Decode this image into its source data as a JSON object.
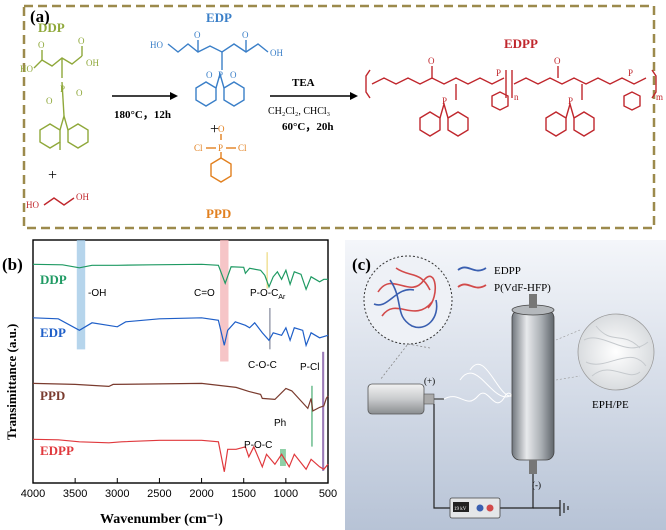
{
  "panel_a": {
    "label": "(a)",
    "ddp": {
      "name": "DDP",
      "color": "#8fa83a"
    },
    "edp": {
      "name": "EDP",
      "color": "#3a7fc8"
    },
    "ppd": {
      "name": "PPD",
      "color": "#e2801f"
    },
    "edpp": {
      "name": "EDPP",
      "color": "#c0272d"
    },
    "plus": "+",
    "step1": {
      "condition": "180°C，12h"
    },
    "step2": {
      "reagent": "TEA",
      "solvent": "CH₂Cl₂, CHCl₃",
      "condition": "60°C，20h"
    },
    "atoms": {
      "o": "O",
      "oh": "OH",
      "ho": "HO",
      "p": "P",
      "cl": "Cl",
      "n": "n",
      "m": "m"
    },
    "colors": {
      "border": "#9c8a4c",
      "ethylene_glycol": "#c0272d"
    }
  },
  "panel_b": {
    "label": "(b)",
    "chart_data": {
      "type": "line",
      "title": "",
      "xlabel": "Wavenumber (cm⁻¹)",
      "ylabel": "Transimittance (a.u.)",
      "xlim": [
        4000,
        500
      ],
      "x_reversed": true,
      "ticks": [
        4000,
        3500,
        3000,
        2500,
        2000,
        1500,
        1000,
        500
      ],
      "tick_labels": [
        "4000",
        "3500",
        "3000",
        "2500",
        "2000",
        "1500",
        "1000",
        "500"
      ],
      "series": [
        {
          "name": "DDP",
          "color": "#1f9a63",
          "baseline": 0.1,
          "points": [
            [
              4000,
              0
            ],
            [
              3650,
              0.01
            ],
            [
              3450,
              0.07
            ],
            [
              3300,
              0.02
            ],
            [
              3000,
              0.02
            ],
            [
              2600,
              0.01
            ],
            [
              2000,
              0.0
            ],
            [
              1800,
              0.02
            ],
            [
              1720,
              0.38
            ],
            [
              1650,
              0.05
            ],
            [
              1500,
              0.06
            ],
            [
              1480,
              0.18
            ],
            [
              1430,
              0.08
            ],
            [
              1300,
              0.12
            ],
            [
              1250,
              0.22
            ],
            [
              1200,
              0.45
            ],
            [
              1150,
              0.25
            ],
            [
              1100,
              0.15
            ],
            [
              1050,
              0.3
            ],
            [
              1000,
              0.12
            ],
            [
              950,
              0.4
            ],
            [
              900,
              0.15
            ],
            [
              820,
              0.2
            ],
            [
              760,
              0.5
            ],
            [
              700,
              0.25
            ],
            [
              600,
              0.35
            ],
            [
              550,
              0.3
            ],
            [
              500,
              0.3
            ]
          ]
        },
        {
          "name": "EDP",
          "color": "#1f5fc8",
          "baseline": 0.32,
          "points": [
            [
              4000,
              0
            ],
            [
              3700,
              0.02
            ],
            [
              3450,
              0.25
            ],
            [
              3300,
              0.1
            ],
            [
              3000,
              0.18
            ],
            [
              2900,
              0.08
            ],
            [
              2500,
              0.02
            ],
            [
              2000,
              0.0
            ],
            [
              1800,
              0.05
            ],
            [
              1730,
              0.55
            ],
            [
              1690,
              0.25
            ],
            [
              1600,
              0.08
            ],
            [
              1480,
              0.15
            ],
            [
              1430,
              0.2
            ],
            [
              1370,
              0.1
            ],
            [
              1280,
              0.3
            ],
            [
              1200,
              0.45
            ],
            [
              1150,
              0.3
            ],
            [
              1050,
              0.35
            ],
            [
              1000,
              0.2
            ],
            [
              950,
              0.45
            ],
            [
              900,
              0.2
            ],
            [
              800,
              0.25
            ],
            [
              760,
              0.55
            ],
            [
              700,
              0.3
            ],
            [
              600,
              0.4
            ],
            [
              500,
              0.35
            ]
          ]
        },
        {
          "name": "PPD",
          "color": "#7a3b2e",
          "baseline": 0.59,
          "points": [
            [
              4000,
              0
            ],
            [
              3500,
              0.02
            ],
            [
              3100,
              0.06
            ],
            [
              3050,
              0.02
            ],
            [
              2500,
              0.01
            ],
            [
              2000,
              0.0
            ],
            [
              1590,
              0.08
            ],
            [
              1440,
              0.16
            ],
            [
              1300,
              0.22
            ],
            [
              1280,
              0.3
            ],
            [
              1130,
              0.32
            ],
            [
              1000,
              0.1
            ],
            [
              930,
              0.15
            ],
            [
              740,
              0.5
            ],
            [
              700,
              0.3
            ],
            [
              680,
              0.55
            ],
            [
              600,
              0.48
            ],
            [
              550,
              0.45
            ],
            [
              520,
              0.3
            ],
            [
              500,
              0.25
            ]
          ]
        },
        {
          "name": "EDPP",
          "color": "#e0393d",
          "baseline": 0.82,
          "points": [
            [
              4000,
              0
            ],
            [
              3700,
              0.01
            ],
            [
              3450,
              0.05
            ],
            [
              3100,
              0.07
            ],
            [
              2950,
              0.05
            ],
            [
              2500,
              0.02
            ],
            [
              2000,
              0.02
            ],
            [
              1800,
              0.05
            ],
            [
              1730,
              0.65
            ],
            [
              1690,
              0.2
            ],
            [
              1590,
              0.2
            ],
            [
              1480,
              0.15
            ],
            [
              1440,
              0.35
            ],
            [
              1380,
              0.15
            ],
            [
              1280,
              0.55
            ],
            [
              1230,
              0.3
            ],
            [
              1130,
              0.5
            ],
            [
              1050,
              0.3
            ],
            [
              960,
              0.55
            ],
            [
              900,
              0.3
            ],
            [
              760,
              0.6
            ],
            [
              700,
              0.4
            ],
            [
              600,
              0.55
            ],
            [
              550,
              0.6
            ],
            [
              500,
              0.5
            ]
          ]
        }
      ],
      "series_labels": {
        "ddp": "DDP",
        "edp": "EDP",
        "ppd": "PPD",
        "edpp": "EDPP"
      },
      "annotations": {
        "oh": "-OH",
        "co": "C=O",
        "poc_ar": "P-O-C",
        "poc_ar_sub": "Ar",
        "coc": "C-O-C",
        "pcl": "P-Cl",
        "ph": "Ph",
        "poc": "P-O-C"
      }
    }
  },
  "panel_c": {
    "label": "(c)",
    "legend": [
      {
        "name": "EDPP",
        "color": "#3a5fb0"
      },
      {
        "name": "P(VdF-HFP)",
        "color": "#d24a4a"
      }
    ],
    "positive": "(+)",
    "negative": "(-)",
    "product_label": "EPH/PE",
    "voltage": "19 kV"
  }
}
